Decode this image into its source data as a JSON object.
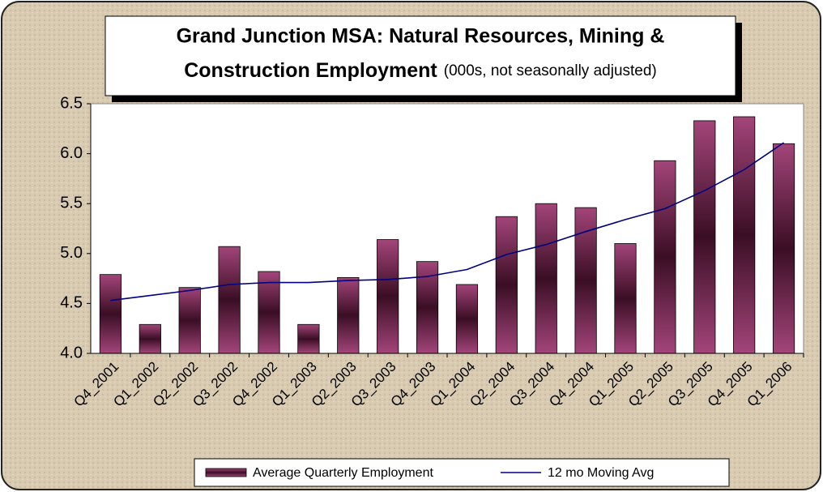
{
  "chart_data": {
    "type": "bar",
    "title": [
      "Grand Junction MSA: Natural Resources, Mining &",
      "Construction Employment"
    ],
    "subtitle": "(000s, not seasonally adjusted)",
    "categories": [
      "Q4_2001",
      "Q1_2002",
      "Q2_2002",
      "Q3_2002",
      "Q4_2002",
      "Q1_2003",
      "Q2_2003",
      "Q3_2003",
      "Q4_2003",
      "Q1_2004",
      "Q2_2004",
      "Q3_2004",
      "Q4_2004",
      "Q1_2005",
      "Q2_2005",
      "Q3_2005",
      "Q4_2005",
      "Q1_2006"
    ],
    "series": [
      {
        "name": "Average Quarterly Employment",
        "type": "bar",
        "color": "#8b2d5c",
        "values": [
          4.79,
          4.29,
          4.66,
          5.07,
          4.82,
          4.29,
          4.76,
          5.14,
          4.92,
          4.69,
          5.37,
          5.5,
          5.46,
          5.1,
          5.93,
          6.33,
          6.37,
          6.1
        ]
      },
      {
        "name": "12 mo Moving Avg",
        "type": "line",
        "color": "#000080",
        "values": [
          4.53,
          4.58,
          4.63,
          4.69,
          4.71,
          4.71,
          4.73,
          4.74,
          4.77,
          4.84,
          4.99,
          5.09,
          5.22,
          5.34,
          5.45,
          5.63,
          5.84,
          6.11
        ]
      }
    ],
    "ylim": [
      4.0,
      6.5
    ],
    "yticks": [
      {
        "value": 4.0,
        "label": "4.0"
      },
      4.5,
      {
        "value": 5.0,
        "label": "5.0"
      },
      5.5,
      {
        "value": 6.0,
        "label": "6.0"
      },
      6.5
    ]
  }
}
